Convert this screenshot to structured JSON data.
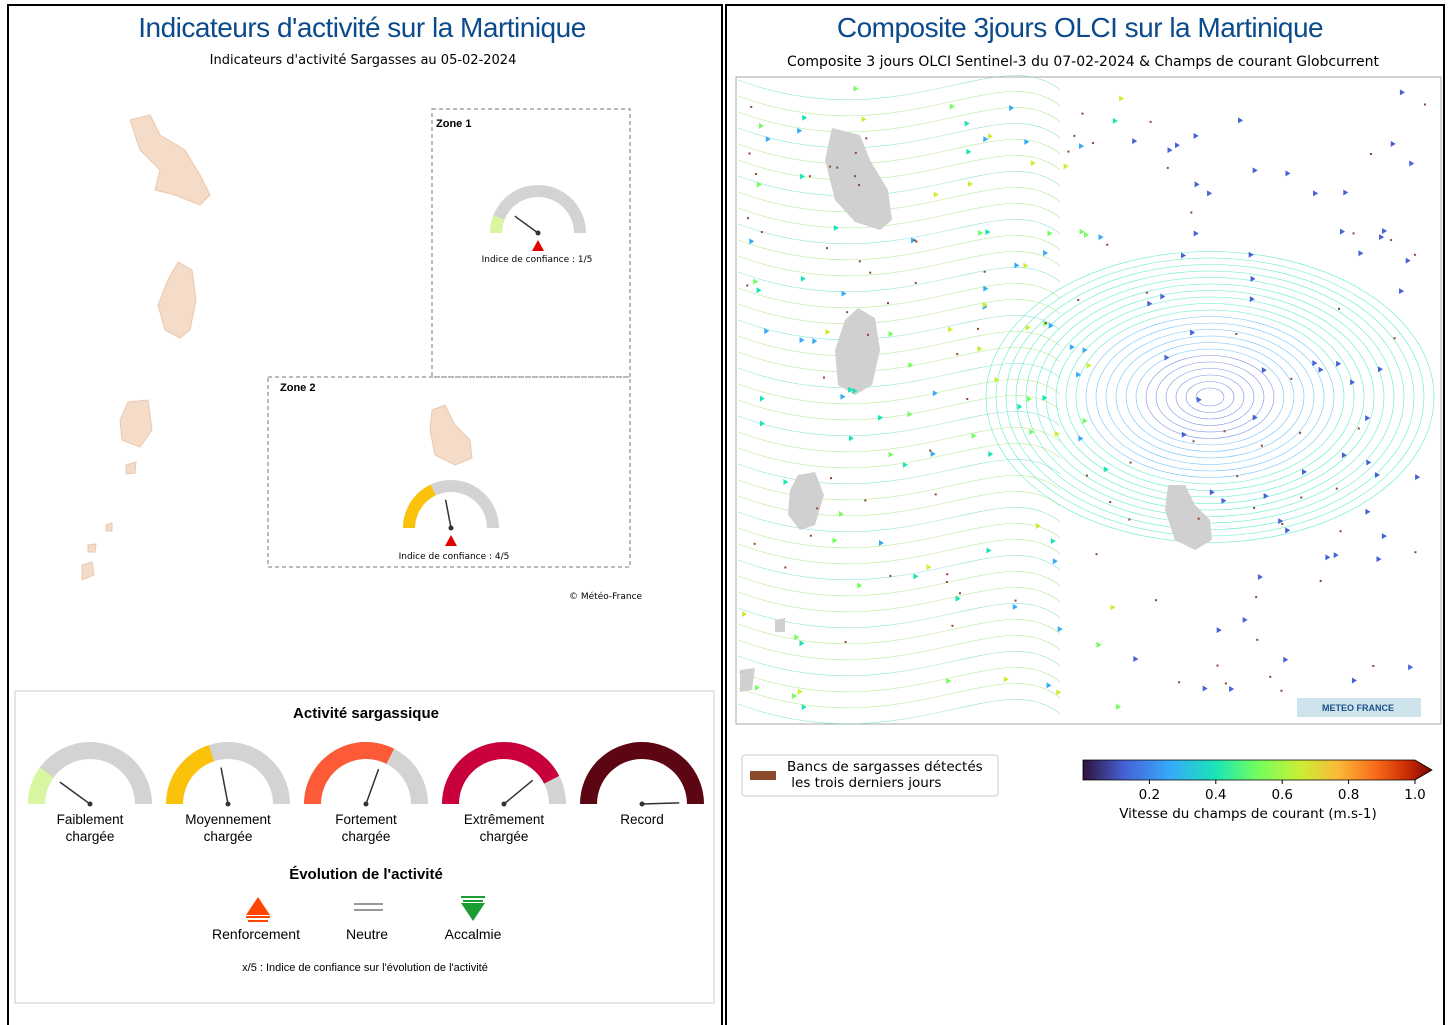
{
  "left": {
    "title": "Indicateurs d'activité sur la Martinique",
    "subtitle": "Indicateurs d'activité Sargasses au 05-02-2024",
    "zones": [
      {
        "label": "Zone 1",
        "confidence": "Indice de confiance : 1/5"
      },
      {
        "label": "Zone 2",
        "confidence": "Indice de confiance : 4/5"
      }
    ],
    "credit": "© Météo-France",
    "legend": {
      "title": "Activité sargassique",
      "levels": [
        "Faiblement\nchargée",
        "Moyennement\nchargée",
        "Fortement\nchargée",
        "Extrêmement\nchargée",
        "Record"
      ],
      "evolution_title": "Évolution de l'activité",
      "evolution": [
        "Renforcement",
        "Neutre",
        "Accalmie"
      ],
      "note": "x/5 : Indice de confiance sur l'évolution de l'activité"
    }
  },
  "right": {
    "title": "Composite 3jours OLCI sur la Martinique",
    "subtitle": "Composite 3 jours OLCI Sentinel-3 du 07-02-2024 & Champs de courant Globcurrent",
    "logo": "METEO FRANCE",
    "legend": "Bancs de sargasses détectés\n les trois derniers jours",
    "colorbar": {
      "label": "Vitesse du champs de courant (m.s-1)",
      "lim": [
        0,
        1
      ],
      "ticks": [
        0.2,
        0.4,
        0.6,
        0.8,
        {
          "value": 1,
          "label": "1.0"
        }
      ]
    }
  }
}
